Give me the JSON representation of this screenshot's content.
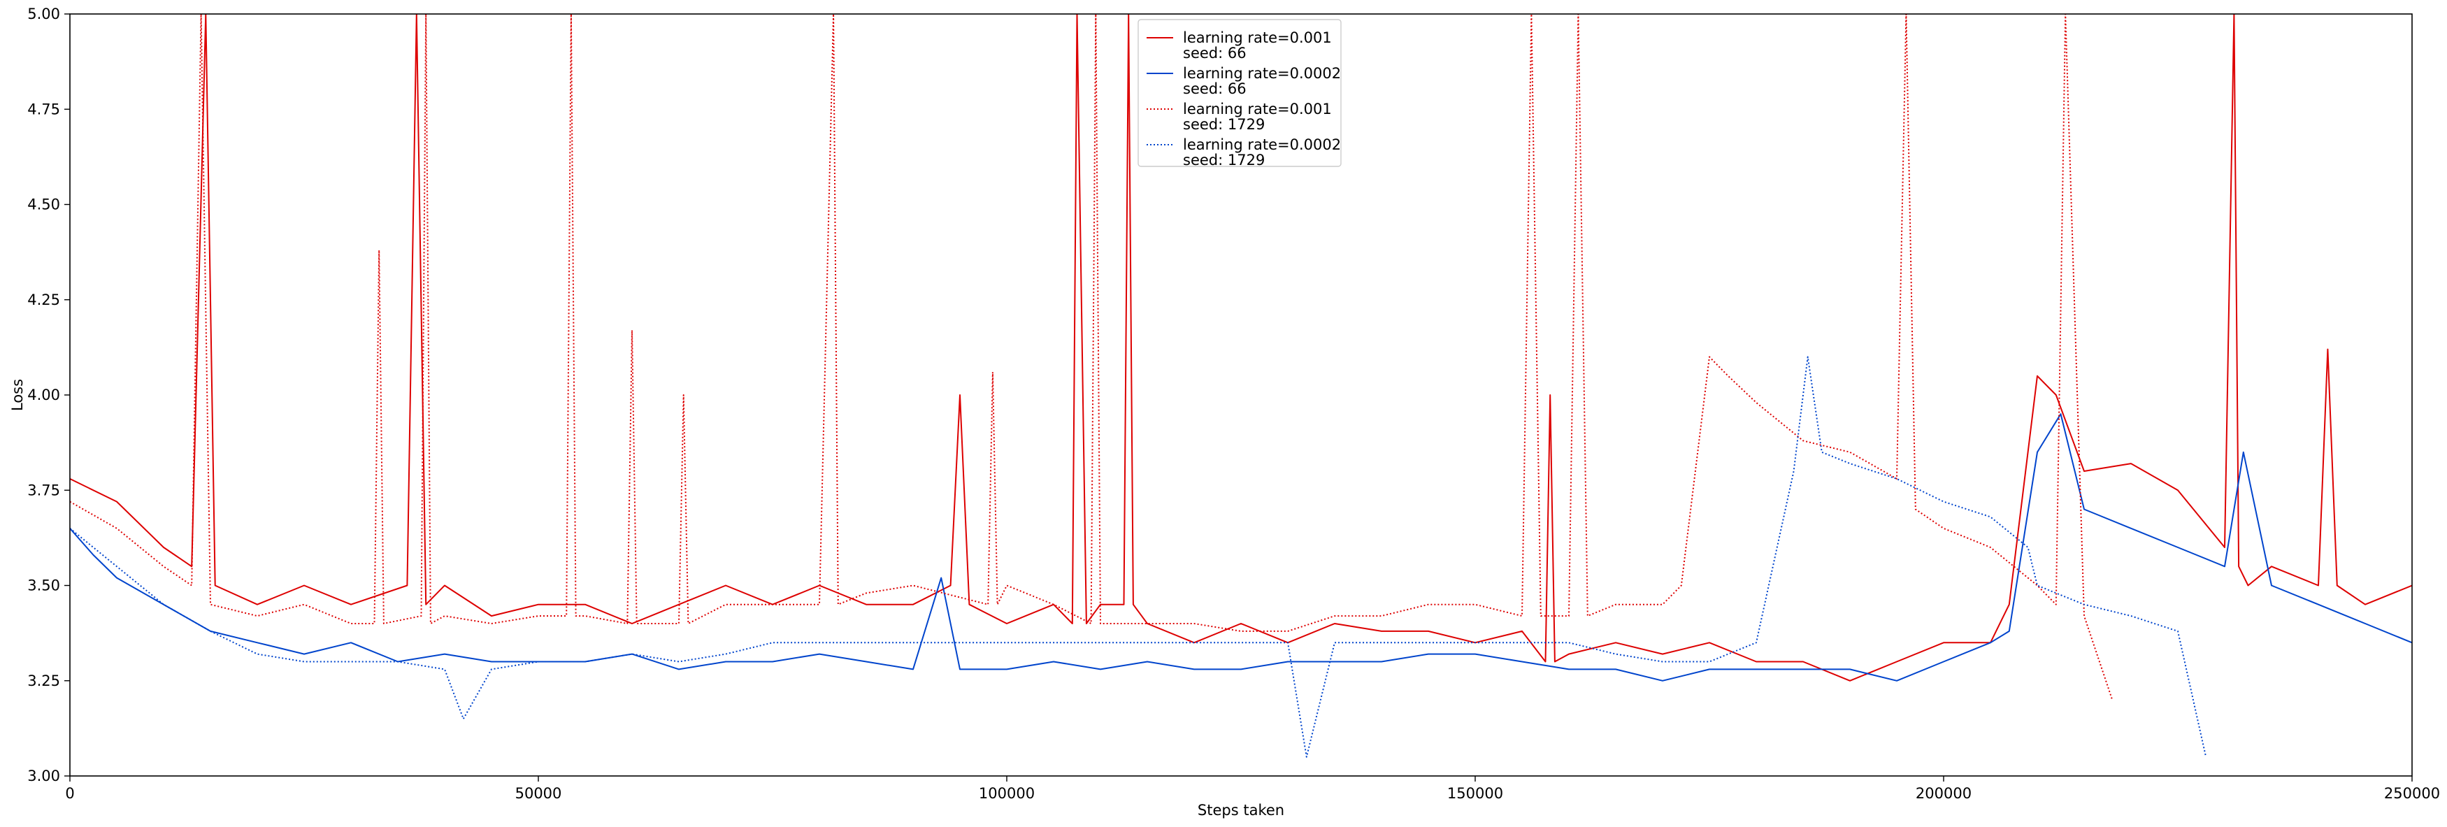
{
  "chart_data": {
    "type": "line",
    "title": "",
    "xlabel": "Steps taken",
    "ylabel": "Loss",
    "xlim": [
      0,
      250000
    ],
    "ylim": [
      3.0,
      5.0
    ],
    "xticks": [
      0,
      50000,
      100000,
      150000,
      200000,
      250000
    ],
    "yticks": [
      3.0,
      3.25,
      3.5,
      3.75,
      4.0,
      4.25,
      4.5,
      4.75,
      5.0
    ],
    "xtick_labels": [
      "0",
      "50000",
      "100000",
      "150000",
      "200000",
      "250000"
    ],
    "ytick_labels": [
      "3.00",
      "3.25",
      "3.50",
      "3.75",
      "4.00",
      "4.25",
      "4.50",
      "4.75",
      "5.00"
    ],
    "grid": false,
    "legend_position": "top-center",
    "series": [
      {
        "name_lines": [
          "learning rate=0.001",
          "seed: 66"
        ],
        "color": "#dd0000",
        "style": "solid",
        "x": [
          0,
          5000,
          10000,
          13000,
          14500,
          15500,
          20000,
          25000,
          30000,
          36000,
          37000,
          38000,
          40000,
          45000,
          50000,
          55000,
          60000,
          65000,
          70000,
          75000,
          80000,
          85000,
          90000,
          94000,
          95000,
          96000,
          100000,
          105000,
          107000,
          107500,
          108500,
          110000,
          112500,
          113000,
          113500,
          115000,
          120000,
          125000,
          130000,
          135000,
          140000,
          145000,
          150000,
          155000,
          157500,
          158000,
          158500,
          160000,
          165000,
          170000,
          175000,
          180000,
          185000,
          190000,
          195000,
          200000,
          205000,
          207000,
          210000,
          212000,
          215000,
          220000,
          225000,
          230000,
          231000,
          231500,
          232500,
          235000,
          240000,
          241000,
          242000,
          245000,
          250000
        ],
        "y": [
          3.78,
          3.72,
          3.6,
          3.55,
          5.0,
          3.5,
          3.45,
          3.5,
          3.45,
          3.5,
          5.0,
          3.45,
          3.5,
          3.42,
          3.45,
          3.45,
          3.4,
          3.45,
          3.5,
          3.45,
          3.5,
          3.45,
          3.45,
          3.5,
          4.0,
          3.45,
          3.4,
          3.45,
          3.4,
          5.0,
          3.4,
          3.45,
          3.45,
          5.0,
          3.45,
          3.4,
          3.35,
          3.4,
          3.35,
          3.4,
          3.38,
          3.38,
          3.35,
          3.38,
          3.3,
          4.0,
          3.3,
          3.32,
          3.35,
          3.32,
          3.35,
          3.3,
          3.3,
          3.25,
          3.3,
          3.35,
          3.35,
          3.45,
          4.05,
          4.0,
          3.8,
          3.82,
          3.75,
          3.6,
          5.0,
          3.55,
          3.5,
          3.55,
          3.5,
          4.12,
          3.5,
          3.45,
          3.5
        ]
      },
      {
        "name_lines": [
          "learning rate=0.0002",
          "seed: 66"
        ],
        "color": "#0044cc",
        "style": "solid",
        "x": [
          0,
          2500,
          5000,
          10000,
          15000,
          20000,
          25000,
          30000,
          35000,
          40000,
          45000,
          50000,
          55000,
          60000,
          65000,
          70000,
          75000,
          80000,
          85000,
          90000,
          93000,
          95000,
          100000,
          105000,
          110000,
          115000,
          120000,
          125000,
          130000,
          135000,
          140000,
          145000,
          150000,
          155000,
          160000,
          165000,
          170000,
          175000,
          180000,
          185000,
          190000,
          195000,
          200000,
          205000,
          207000,
          210000,
          212500,
          215000,
          220000,
          225000,
          230000,
          232000,
          235000,
          240000,
          245000,
          250000
        ],
        "y": [
          3.65,
          3.58,
          3.52,
          3.45,
          3.38,
          3.35,
          3.32,
          3.35,
          3.3,
          3.32,
          3.3,
          3.3,
          3.3,
          3.32,
          3.28,
          3.3,
          3.3,
          3.32,
          3.3,
          3.28,
          3.52,
          3.28,
          3.28,
          3.3,
          3.28,
          3.3,
          3.28,
          3.28,
          3.3,
          3.3,
          3.3,
          3.32,
          3.32,
          3.3,
          3.28,
          3.28,
          3.25,
          3.28,
          3.28,
          3.28,
          3.28,
          3.25,
          3.3,
          3.35,
          3.38,
          3.85,
          3.95,
          3.7,
          3.65,
          3.6,
          3.55,
          3.85,
          3.5,
          3.45,
          3.4,
          3.35
        ]
      },
      {
        "name_lines": [
          "learning rate=0.001",
          "seed: 1729"
        ],
        "color": "#dd0000",
        "style": "dotted",
        "x": [
          0,
          5000,
          10000,
          13000,
          14000,
          15000,
          20000,
          25000,
          30000,
          32500,
          33000,
          33500,
          37500,
          38000,
          38500,
          40000,
          45000,
          50000,
          53000,
          53500,
          54000,
          55000,
          59500,
          60000,
          60500,
          65000,
          65500,
          66000,
          70000,
          75000,
          80000,
          81500,
          82000,
          85000,
          90000,
          98000,
          98500,
          99000,
          100000,
          105000,
          109000,
          109500,
          110000,
          115000,
          120000,
          125000,
          130000,
          135000,
          140000,
          145000,
          150000,
          155000,
          156000,
          157000,
          160000,
          161000,
          162000,
          165000,
          170000,
          172000,
          175000,
          177000,
          180000,
          185000,
          190000,
          195000,
          196000,
          197000,
          200000,
          205000,
          210000,
          212000,
          213000,
          215000,
          218000
        ],
        "y": [
          3.72,
          3.65,
          3.55,
          3.5,
          5.0,
          3.45,
          3.42,
          3.45,
          3.4,
          3.4,
          4.38,
          3.4,
          3.42,
          5.0,
          3.4,
          3.42,
          3.4,
          3.42,
          3.42,
          5.0,
          3.42,
          3.42,
          3.4,
          4.17,
          3.4,
          3.4,
          4.0,
          3.4,
          3.45,
          3.45,
          3.45,
          5.0,
          3.45,
          3.48,
          3.5,
          3.45,
          4.06,
          3.45,
          3.5,
          3.45,
          3.4,
          5.0,
          3.4,
          3.4,
          3.4,
          3.38,
          3.38,
          3.42,
          3.42,
          3.45,
          3.45,
          3.42,
          5.0,
          3.42,
          3.42,
          5.0,
          3.42,
          3.45,
          3.45,
          3.5,
          4.1,
          4.05,
          3.98,
          3.88,
          3.85,
          3.78,
          5.0,
          3.7,
          3.65,
          3.6,
          3.5,
          3.45,
          5.0,
          3.42,
          3.2
        ]
      },
      {
        "name_lines": [
          "learning rate=0.0002",
          "seed: 1729"
        ],
        "color": "#0044cc",
        "style": "dotted",
        "x": [
          0,
          5000,
          10000,
          15000,
          20000,
          25000,
          30000,
          35000,
          40000,
          42000,
          45000,
          50000,
          55000,
          60000,
          65000,
          70000,
          75000,
          80000,
          85000,
          90000,
          95000,
          100000,
          105000,
          110000,
          115000,
          120000,
          125000,
          130000,
          132000,
          135000,
          140000,
          145000,
          150000,
          155000,
          160000,
          165000,
          170000,
          175000,
          180000,
          184000,
          185500,
          187000,
          190000,
          195000,
          200000,
          205000,
          209000,
          210000,
          215000,
          220000,
          225000,
          228000
        ],
        "y": [
          3.65,
          3.55,
          3.45,
          3.38,
          3.32,
          3.3,
          3.3,
          3.3,
          3.28,
          3.15,
          3.28,
          3.3,
          3.3,
          3.32,
          3.3,
          3.32,
          3.35,
          3.35,
          3.35,
          3.35,
          3.35,
          3.35,
          3.35,
          3.35,
          3.35,
          3.35,
          3.35,
          3.35,
          3.05,
          3.35,
          3.35,
          3.35,
          3.35,
          3.35,
          3.35,
          3.32,
          3.3,
          3.3,
          3.35,
          3.8,
          4.1,
          3.85,
          3.82,
          3.78,
          3.72,
          3.68,
          3.6,
          3.5,
          3.45,
          3.42,
          3.38,
          3.05
        ]
      }
    ]
  }
}
